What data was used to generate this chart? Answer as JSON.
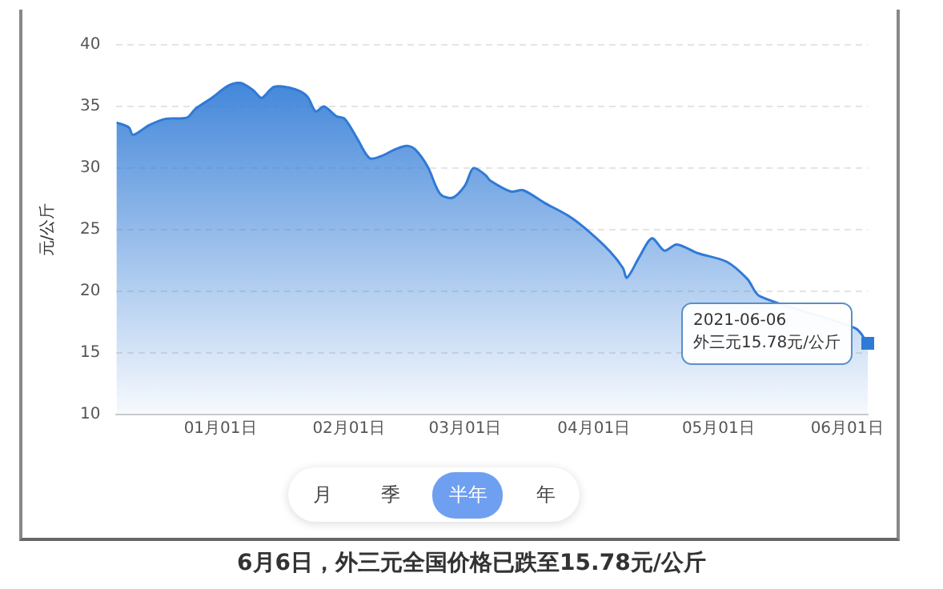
{
  "chart_data": {
    "type": "area",
    "ylabel": "元/公斤",
    "x": [
      "2020-12-07",
      "2020-12-10",
      "2020-12-11",
      "2020-12-15",
      "2020-12-19",
      "2020-12-24",
      "2020-12-26",
      "2020-12-30",
      "2021-01-03",
      "2021-01-06",
      "2021-01-09",
      "2021-01-11",
      "2021-01-14",
      "2021-01-19",
      "2021-01-22",
      "2021-01-24",
      "2021-01-26",
      "2021-01-29",
      "2021-01-31",
      "2021-02-03",
      "2021-02-06",
      "2021-02-09",
      "2021-02-12",
      "2021-02-15",
      "2021-02-17",
      "2021-02-20",
      "2021-02-23",
      "2021-02-26",
      "2021-03-01",
      "2021-03-03",
      "2021-03-06",
      "2021-03-07",
      "2021-03-12",
      "2021-03-15",
      "2021-03-20",
      "2021-03-26",
      "2021-03-31",
      "2021-04-05",
      "2021-04-08",
      "2021-04-09",
      "2021-04-12",
      "2021-04-15",
      "2021-04-18",
      "2021-04-21",
      "2021-04-26",
      "2021-05-03",
      "2021-05-08",
      "2021-05-11",
      "2021-05-20",
      "2021-06-03",
      "2021-06-06"
    ],
    "series": [
      {
        "color": "#2f7ad6",
        "values": [
          33.7,
          33.3,
          32.7,
          33.5,
          34.0,
          34.1,
          34.8,
          35.7,
          36.7,
          36.9,
          36.3,
          35.7,
          36.6,
          36.4,
          35.8,
          34.6,
          35.0,
          34.2,
          34.0,
          32.4,
          30.8,
          31.0,
          31.5,
          31.8,
          31.5,
          30.1,
          27.9,
          27.6,
          28.6,
          30.0,
          29.4,
          29.0,
          28.1,
          28.2,
          27.2,
          26.1,
          24.8,
          23.2,
          21.9,
          21.1,
          22.8,
          24.3,
          23.3,
          23.8,
          23.1,
          22.4,
          21.0,
          19.6,
          null,
          17.0,
          15.78
        ]
      }
    ],
    "xlim": [
      "2020-12-07",
      "2021-06-06"
    ],
    "xticks": [
      {
        "value": "2021-01-01",
        "label": "01月01日"
      },
      {
        "value": "2021-02-01",
        "label": "02月01日"
      },
      {
        "value": "2021-03-01",
        "label": "03月01日"
      },
      {
        "value": "2021-04-01",
        "label": "04月01日"
      },
      {
        "value": "2021-05-01",
        "label": "05月01日"
      },
      {
        "value": "2021-06-01",
        "label": "06月01日"
      }
    ],
    "ylim": [
      10,
      40
    ],
    "yticks": [
      10,
      15,
      20,
      25,
      30,
      35,
      40
    ],
    "grid": "y",
    "marker": "none",
    "line_style": "solid",
    "annotations": [
      {
        "text": "2021-06-06\n外三元15.78元/公斤",
        "x": "2021-06-06",
        "y": 15.78
      },
      "月",
      "季",
      "半年",
      "年",
      "6月6日，外三元全国价格已跌至15.78元/公斤"
    ]
  }
}
